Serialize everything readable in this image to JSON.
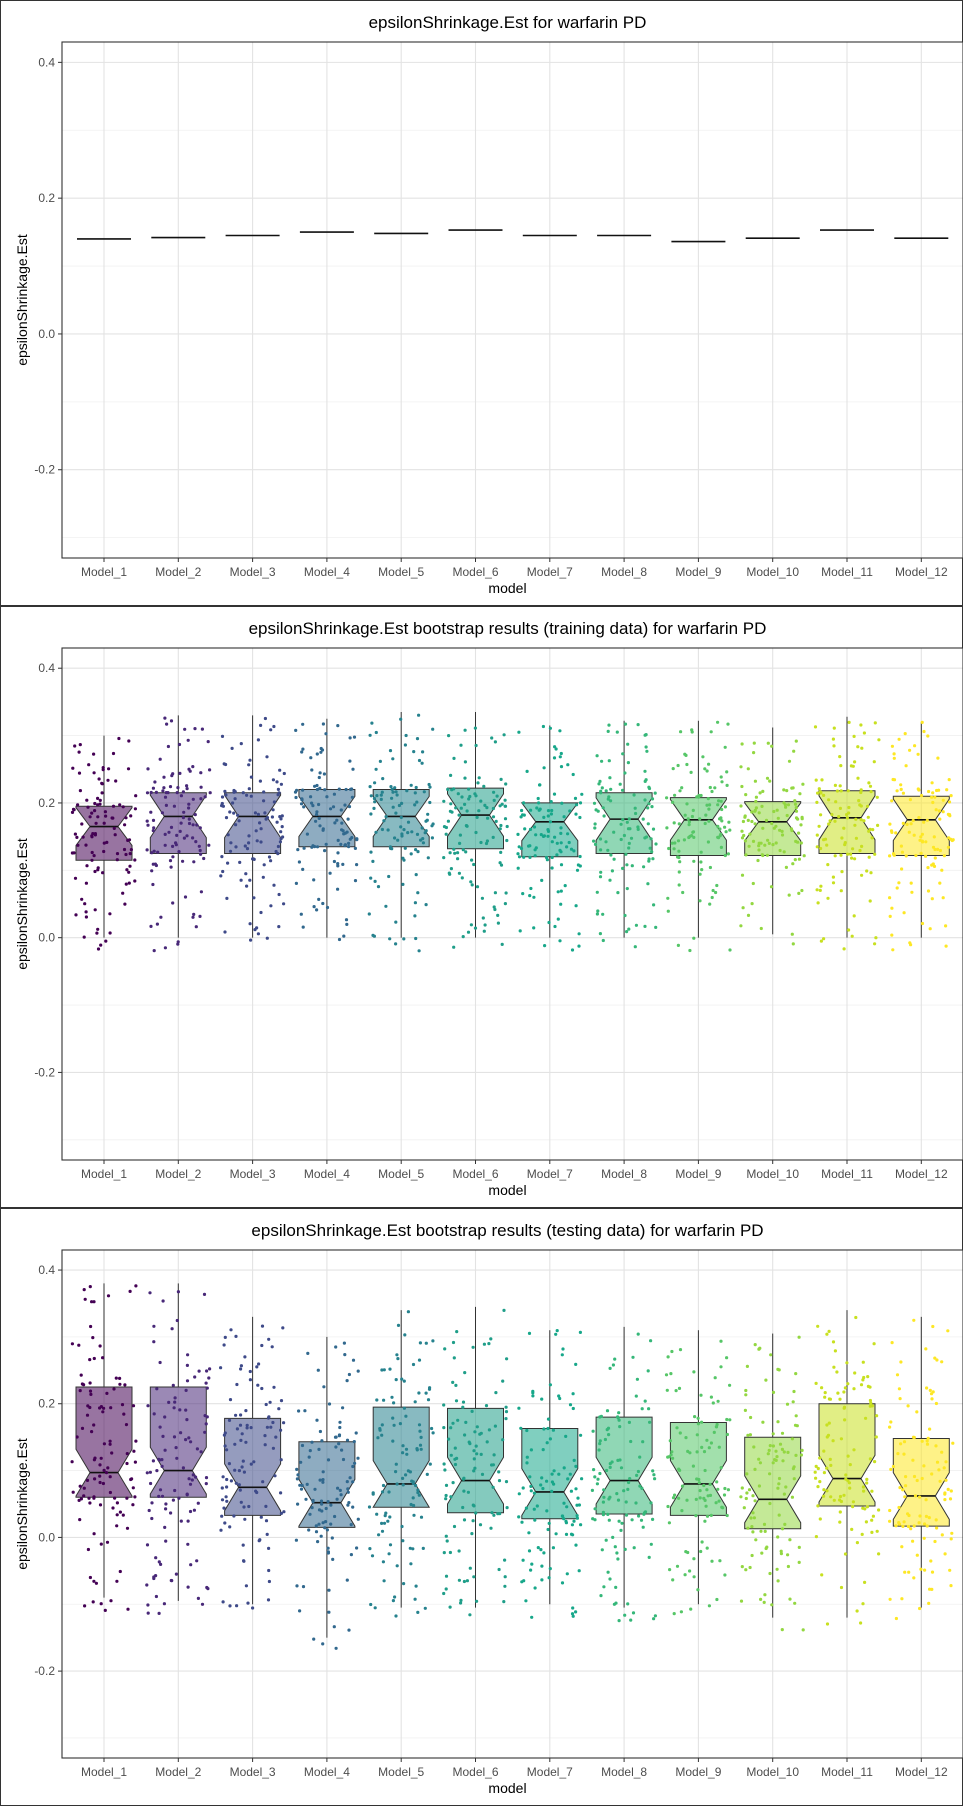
{
  "chart_data": [
    {
      "type": "boxplot",
      "title": "epsilonShrinkage.Est for warfarin PD",
      "xlabel": "model",
      "ylabel": "epsilonShrinkage.Est",
      "ylim": [
        -0.33,
        0.43
      ],
      "y_ticks": [
        -0.2,
        0.0,
        0.2,
        0.4
      ],
      "y_tick_labels": [
        "-0.2",
        "0.0",
        "0.2",
        "0.4"
      ],
      "grid": true,
      "categories": [
        "Model_1",
        "Model_2",
        "Model_3",
        "Model_4",
        "Model_5",
        "Model_6",
        "Model_7",
        "Model_8",
        "Model_9",
        "Model_10",
        "Model_11",
        "Model_12"
      ],
      "values": [
        0.14,
        0.142,
        0.145,
        0.15,
        0.148,
        0.153,
        0.145,
        0.145,
        0.136,
        0.141,
        0.153,
        0.141
      ]
    },
    {
      "type": "boxplot",
      "title": "epsilonShrinkage.Est bootstrap results (training data) for warfarin PD",
      "xlabel": "model",
      "ylabel": "epsilonShrinkage.Est",
      "ylim": [
        -0.33,
        0.43
      ],
      "y_ticks": [
        -0.2,
        0.0,
        0.2,
        0.4
      ],
      "y_tick_labels": [
        "-0.2",
        "0.0",
        "0.2",
        "0.4"
      ],
      "grid": true,
      "notched": true,
      "jittered_points": true,
      "categories": [
        "Model_1",
        "Model_2",
        "Model_3",
        "Model_4",
        "Model_5",
        "Model_6",
        "Model_7",
        "Model_8",
        "Model_9",
        "Model_10",
        "Model_11",
        "Model_12"
      ],
      "colors": [
        "#440154",
        "#482878",
        "#3e4a89",
        "#31688e",
        "#26828e",
        "#1f9e89",
        "#17a78a",
        "#35b779",
        "#56c667",
        "#93d741",
        "#c8e020",
        "#fde725"
      ],
      "stats": [
        {
          "min": 0.0,
          "q1": 0.115,
          "median": 0.165,
          "q3": 0.195,
          "max": 0.3
        },
        {
          "min": 0.0,
          "q1": 0.125,
          "median": 0.18,
          "q3": 0.215,
          "max": 0.33
        },
        {
          "min": 0.0,
          "q1": 0.125,
          "median": 0.18,
          "q3": 0.215,
          "max": 0.33
        },
        {
          "min": 0.0,
          "q1": 0.135,
          "median": 0.18,
          "q3": 0.22,
          "max": 0.325
        },
        {
          "min": 0.0,
          "q1": 0.135,
          "median": 0.18,
          "q3": 0.22,
          "max": 0.335
        },
        {
          "min": 0.0,
          "q1": 0.132,
          "median": 0.182,
          "q3": 0.222,
          "max": 0.335
        },
        {
          "min": 0.0,
          "q1": 0.12,
          "median": 0.172,
          "q3": 0.2,
          "max": 0.315
        },
        {
          "min": 0.0,
          "q1": 0.125,
          "median": 0.176,
          "q3": 0.215,
          "max": 0.322
        },
        {
          "min": 0.0,
          "q1": 0.122,
          "median": 0.175,
          "q3": 0.208,
          "max": 0.322
        },
        {
          "min": 0.005,
          "q1": 0.122,
          "median": 0.172,
          "q3": 0.202,
          "max": 0.312
        },
        {
          "min": 0.0,
          "q1": 0.125,
          "median": 0.178,
          "q3": 0.218,
          "max": 0.328
        },
        {
          "min": 0.0,
          "q1": 0.122,
          "median": 0.175,
          "q3": 0.21,
          "max": 0.32
        }
      ]
    },
    {
      "type": "boxplot",
      "title": "epsilonShrinkage.Est bootstrap results (testing data) for warfarin PD",
      "xlabel": "model",
      "ylabel": "epsilonShrinkage.Est",
      "ylim": [
        -0.33,
        0.43
      ],
      "y_ticks": [
        -0.2,
        0.0,
        0.2,
        0.4
      ],
      "y_tick_labels": [
        "-0.2",
        "0.0",
        "0.2",
        "0.4"
      ],
      "grid": true,
      "notched": true,
      "jittered_points": true,
      "categories": [
        "Model_1",
        "Model_2",
        "Model_3",
        "Model_4",
        "Model_5",
        "Model_6",
        "Model_7",
        "Model_8",
        "Model_9",
        "Model_10",
        "Model_11",
        "Model_12"
      ],
      "colors": [
        "#440154",
        "#482878",
        "#3e4a89",
        "#31688e",
        "#26828e",
        "#1f9e89",
        "#17a78a",
        "#35b779",
        "#56c667",
        "#93d741",
        "#c8e020",
        "#fde725"
      ],
      "stats": [
        {
          "min": -0.09,
          "q1": 0.06,
          "median": 0.097,
          "q3": 0.225,
          "max": 0.38
        },
        {
          "min": -0.095,
          "q1": 0.06,
          "median": 0.1,
          "q3": 0.225,
          "max": 0.38
        },
        {
          "min": -0.1,
          "q1": 0.033,
          "median": 0.075,
          "q3": 0.178,
          "max": 0.33
        },
        {
          "min": -0.15,
          "q1": 0.015,
          "median": 0.052,
          "q3": 0.143,
          "max": 0.3
        },
        {
          "min": -0.105,
          "q1": 0.045,
          "median": 0.08,
          "q3": 0.195,
          "max": 0.34
        },
        {
          "min": -0.105,
          "q1": 0.037,
          "median": 0.085,
          "q3": 0.193,
          "max": 0.345
        },
        {
          "min": -0.1,
          "q1": 0.028,
          "median": 0.068,
          "q3": 0.163,
          "max": 0.31
        },
        {
          "min": -0.105,
          "q1": 0.035,
          "median": 0.085,
          "q3": 0.18,
          "max": 0.315
        },
        {
          "min": -0.1,
          "q1": 0.033,
          "median": 0.08,
          "q3": 0.172,
          "max": 0.31
        },
        {
          "min": -0.12,
          "q1": 0.013,
          "median": 0.057,
          "q3": 0.15,
          "max": 0.305
        },
        {
          "min": -0.12,
          "q1": 0.047,
          "median": 0.088,
          "q3": 0.2,
          "max": 0.34
        },
        {
          "min": -0.105,
          "q1": 0.017,
          "median": 0.062,
          "q3": 0.148,
          "max": 0.33
        }
      ]
    }
  ]
}
